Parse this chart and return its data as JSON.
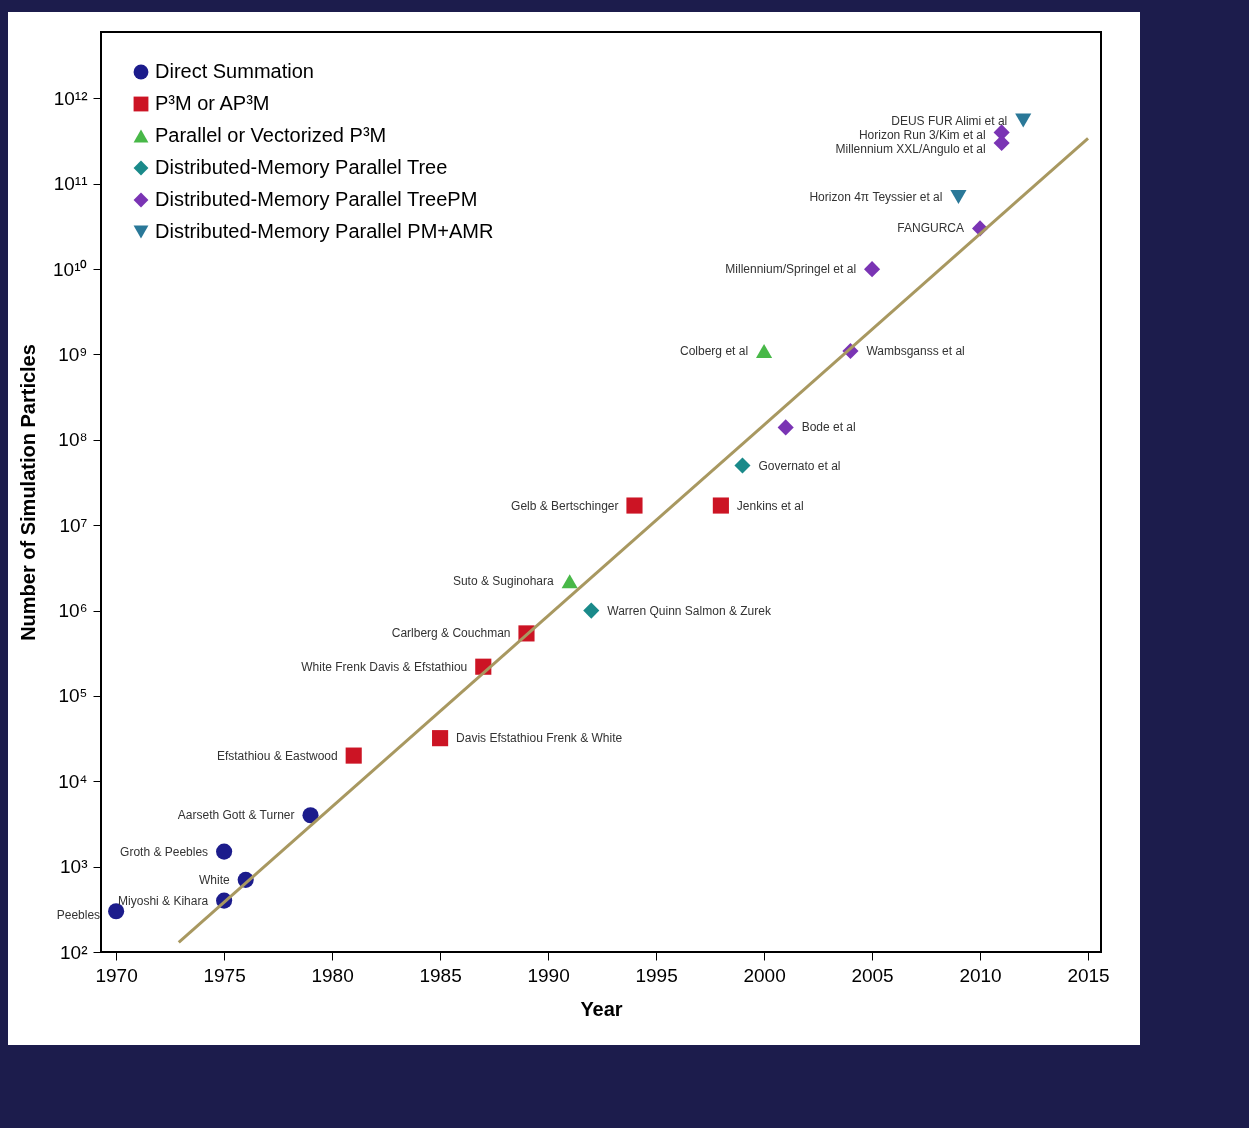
{
  "chart_data": {
    "type": "scatter",
    "xlabel": "Year",
    "ylabel": "Number of Simulation Particles",
    "xlim": [
      1969.3,
      2015.6
    ],
    "xticks": [
      1970,
      1975,
      1980,
      1985,
      1990,
      1995,
      2000,
      2005,
      2010,
      2015
    ],
    "ylim": [
      100,
      6000000000000.0
    ],
    "log": "y",
    "yticks": [
      {
        "value": 100,
        "label": "10²"
      },
      {
        "value": 1000,
        "label": "10³"
      },
      {
        "value": 10000,
        "label": "10⁴"
      },
      {
        "value": 100000,
        "label": "10⁵"
      },
      {
        "value": 1000000,
        "label": "10⁶"
      },
      {
        "value": 10000000,
        "label": "10⁷"
      },
      {
        "value": 100000000,
        "label": "10⁸"
      },
      {
        "value": 1000000000,
        "label": "10⁹"
      },
      {
        "value": 10000000000,
        "label": "10¹⁰"
      },
      {
        "value": 100000000000,
        "label": "10¹¹"
      },
      {
        "value": 1000000000000,
        "label": "10¹²"
      }
    ],
    "legend": "top left",
    "series": [
      {
        "name": "Direct Summation",
        "color": "#1c1c8c",
        "marker": "circle",
        "x": [
          1970,
          1975,
          1975,
          1976,
          1979
        ],
        "values": [
          300,
          1500,
          400,
          700,
          4000
        ]
      },
      {
        "name": "P³M or AP³M",
        "color": "#cc1424",
        "marker": "square",
        "x": [
          1981,
          1985,
          1987,
          1989,
          1994,
          1998
        ],
        "values": [
          20000,
          32000,
          220000,
          540000,
          17000000,
          17000000
        ]
      },
      {
        "name": "Parallel or Vectorized P³M",
        "color": "#48b848",
        "marker": "triangle",
        "x": [
          1991,
          2000
        ],
        "values": [
          2200000,
          1100000000
        ]
      },
      {
        "name": "Distributed-Memory Parallel Tree",
        "color": "#1a8a8a",
        "marker": "diamond",
        "x": [
          1992,
          1999
        ],
        "values": [
          1000000,
          50000000
        ]
      },
      {
        "name": "Distributed-Memory Parallel TreePM",
        "color": "#7a34b4",
        "marker": "diamond",
        "x": [
          2001,
          2004,
          2005,
          2010,
          2011,
          2011
        ],
        "values": [
          140000000,
          1100000000,
          10000000000,
          30000000000,
          400000000000,
          300000000000
        ]
      },
      {
        "name": "Distributed-Memory Parallel PM+AMR",
        "color": "#2a7898",
        "marker": "triangle-down",
        "x": [
          2009,
          2012
        ],
        "values": [
          70000000000,
          550000000000
        ]
      },
      {
        "type": "line",
        "color": "#a89860",
        "x": [
          1972.9,
          2015
        ],
        "values": [
          130,
          340000000000
        ]
      }
    ],
    "annotations": [
      {
        "text": "Peebles",
        "x": 1970,
        "y": 300
      },
      {
        "text": "Groth & Peebles",
        "x": 1975,
        "y": 1500
      },
      {
        "text": "Miyoshi & Kihara",
        "x": 1975,
        "y": 400
      },
      {
        "text": "White",
        "x": 1976,
        "y": 700
      },
      {
        "text": "Aarseth Gott & Turner",
        "x": 1979,
        "y": 4000
      },
      {
        "text": "Efstathiou & Eastwood",
        "x": 1981,
        "y": 20000
      },
      {
        "text": "Davis Efstathiou Frenk & White",
        "x": 1985,
        "y": 32000
      },
      {
        "text": "White Frenk Davis & Efstathiou",
        "x": 1987,
        "y": 220000
      },
      {
        "text": "Carlberg & Couchman",
        "x": 1989,
        "y": 540000
      },
      {
        "text": "Suto & Suginohara",
        "x": 1991,
        "y": 2200000
      },
      {
        "text": "Warren Quinn Salmon & Zurek",
        "x": 1992,
        "y": 1000000
      },
      {
        "text": "Gelb & Bertschinger",
        "x": 1994,
        "y": 17000000
      },
      {
        "text": "Jenkins et al",
        "x": 1998,
        "y": 17000000
      },
      {
        "text": "Governato et al",
        "x": 1999,
        "y": 50000000
      },
      {
        "text": "Colberg et al",
        "x": 2000,
        "y": 1100000000
      },
      {
        "text": "Bode et al",
        "x": 2001,
        "y": 140000000
      },
      {
        "text": "Wambsganss et al",
        "x": 2004,
        "y": 1100000000
      },
      {
        "text": "Millennium/Springel et al",
        "x": 2005,
        "y": 10000000000
      },
      {
        "text": "FANGURCA",
        "x": 2010,
        "y": 30000000000
      },
      {
        "text": "Horizon 4π Teyssier et al",
        "x": 2009,
        "y": 70000000000
      },
      {
        "text": "Horizon Run 3/Kim et al",
        "x": 2011,
        "y": 400000000000
      },
      {
        "text": "Millennium XXL/Angulo et al",
        "x": 2011,
        "y": 300000000000
      },
      {
        "text": "DEUS FUR Alimi et al",
        "x": 2012,
        "y": 550000000000
      }
    ]
  }
}
